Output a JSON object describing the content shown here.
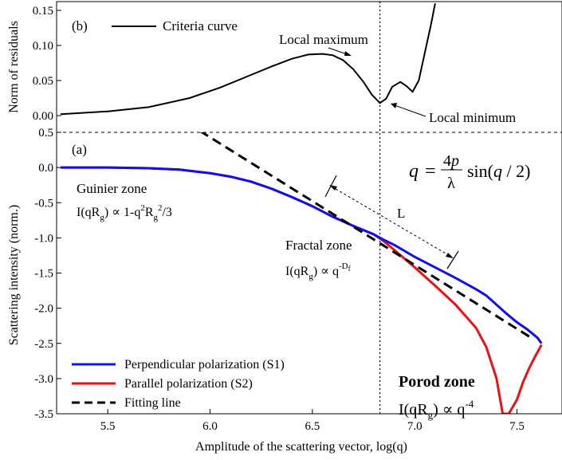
{
  "chart_data": [
    {
      "panel": "(b)",
      "type": "line",
      "ylabel": "Norm of residuals",
      "ylim": [
        0,
        0.15
      ],
      "xlim": [
        5.25,
        7.72
      ],
      "yticks": [
        "0.00",
        "0.05",
        "0.10",
        "0.15"
      ],
      "legend": "Criteria curve",
      "annotations": {
        "max": "Local maximum",
        "min": "Local minimum"
      },
      "series": [
        {
          "name": "Criteria curve",
          "color": "#000000",
          "x": [
            5.27,
            5.5,
            5.7,
            5.9,
            6.05,
            6.2,
            6.3,
            6.4,
            6.48,
            6.55,
            6.6,
            6.65,
            6.7,
            6.75,
            6.79,
            6.83,
            6.86,
            6.89,
            6.93,
            6.96,
            6.99,
            7.02,
            7.05,
            7.08,
            7.1
          ],
          "y": [
            0.002,
            0.006,
            0.012,
            0.025,
            0.04,
            0.058,
            0.07,
            0.081,
            0.087,
            0.088,
            0.086,
            0.079,
            0.066,
            0.048,
            0.03,
            0.018,
            0.024,
            0.041,
            0.048,
            0.042,
            0.034,
            0.05,
            0.09,
            0.13,
            0.16
          ]
        }
      ]
    },
    {
      "panel": "(a)",
      "type": "line",
      "xlabel": "Amplitude of the scattering vector, log(q)",
      "ylabel": "Scattering intensity (norm.)",
      "xlim": [
        5.25,
        7.72
      ],
      "ylim": [
        -3.5,
        0.5
      ],
      "xticks": [
        "5.5",
        "6.0",
        "6.5",
        "7.0",
        "7.5"
      ],
      "yticks": [
        "0.5",
        "0.0",
        "-0.5",
        "-1.0",
        "-1.5",
        "-2.0",
        "-2.5",
        "-3.0",
        "-3.5"
      ],
      "vertical_line_x": 6.83,
      "annotations": {
        "guinier_zone": "Guinier zone",
        "fractal_zone": "Fractal zone",
        "porod_zone": "Porod zone",
        "length": "L"
      },
      "series": [
        {
          "name": "Perpendicular polarization (S1)",
          "color": "#1010ee",
          "style": "solid",
          "x": [
            5.27,
            5.5,
            5.7,
            5.85,
            6.0,
            6.1,
            6.2,
            6.3,
            6.4,
            6.5,
            6.6,
            6.7,
            6.8,
            6.85,
            6.9,
            7.0,
            7.1,
            7.2,
            7.3,
            7.35,
            7.4,
            7.45,
            7.5,
            7.55,
            7.6,
            7.62
          ],
          "y": [
            0.0,
            0.0,
            -0.01,
            -0.03,
            -0.08,
            -0.13,
            -0.2,
            -0.3,
            -0.42,
            -0.55,
            -0.7,
            -0.83,
            -0.95,
            -1.03,
            -1.1,
            -1.27,
            -1.42,
            -1.57,
            -1.73,
            -1.82,
            -1.95,
            -2.08,
            -2.2,
            -2.3,
            -2.42,
            -2.5
          ]
        },
        {
          "name": "Parallel polarization (S2)",
          "color": "#ee1010",
          "style": "solid",
          "x": [
            5.27,
            5.5,
            5.7,
            5.85,
            6.0,
            6.1,
            6.2,
            6.3,
            6.4,
            6.5,
            6.6,
            6.7,
            6.8,
            6.85,
            6.9,
            7.0,
            7.1,
            7.2,
            7.3,
            7.35,
            7.4,
            7.43,
            7.46,
            7.5,
            7.53,
            7.56,
            7.59,
            7.62
          ],
          "y": [
            0.0,
            0.0,
            -0.01,
            -0.03,
            -0.08,
            -0.13,
            -0.2,
            -0.3,
            -0.42,
            -0.55,
            -0.7,
            -0.83,
            -0.95,
            -1.05,
            -1.17,
            -1.42,
            -1.68,
            -1.95,
            -2.28,
            -2.55,
            -3.0,
            -3.5,
            -3.5,
            -3.3,
            -3.05,
            -2.85,
            -2.68,
            -2.52
          ]
        },
        {
          "name": "Fitting line",
          "color": "#000000",
          "style": "dashed",
          "x": [
            5.95,
            7.57
          ],
          "y": [
            0.52,
            -2.42
          ]
        }
      ]
    }
  ]
}
